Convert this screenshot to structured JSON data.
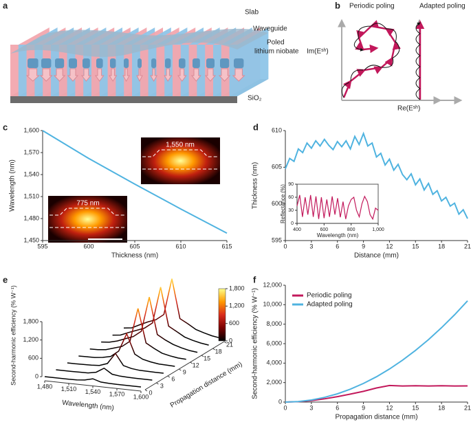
{
  "figure": {
    "labels": [
      "a",
      "b",
      "c",
      "d",
      "e",
      "f"
    ],
    "panel_a": {
      "slab": "Slab",
      "waveguide": "Waveguide",
      "poled": [
        "Poled",
        "lithium niobate"
      ],
      "substrate": "SiO₂"
    },
    "panel_b": {
      "left_title": "Periodic poling",
      "right_title": "Adapted poling",
      "y_axis": "Im(Eˢʰ)",
      "x_axis": "Re(Eˢʰ)"
    }
  },
  "chart_data": [
    {
      "type": "line",
      "x_label": "Thickness (nm)",
      "y_label": "Wavelength (nm)",
      "x": [
        595,
        600,
        605,
        610,
        615
      ],
      "values": [
        1600,
        1562,
        1527,
        1493,
        1460
      ],
      "color": "#4fb3e0",
      "xlim": [
        595,
        615
      ],
      "xticks": [
        595,
        600,
        605,
        610,
        615
      ],
      "ylim": [
        1450,
        1600
      ],
      "yticks": [
        {
          "value": 1450,
          "label": "1,450"
        },
        {
          "value": 1480,
          "label": "1,480"
        },
        {
          "value": 1510,
          "label": "1,510"
        },
        {
          "value": 1540,
          "label": "1,540"
        },
        {
          "value": 1570,
          "label": "1,570"
        },
        {
          "value": 1600,
          "label": "1,600"
        }
      ],
      "annotations": [
        "1,550 nm",
        "775 nm"
      ]
    },
    {
      "type": "line",
      "x_label": "Distance (mm)",
      "y_label": "Thickness (nm)",
      "x": [
        0,
        0.5,
        1,
        1.5,
        2,
        2.5,
        3,
        3.5,
        4,
        4.5,
        5,
        5.5,
        6,
        6.5,
        7,
        7.5,
        8,
        8.5,
        9,
        9.5,
        10,
        10.5,
        11,
        11.5,
        12,
        12.5,
        13,
        13.5,
        14,
        14.5,
        15,
        15.5,
        16,
        16.5,
        17,
        17.5,
        18,
        18.5,
        19,
        19.5,
        20,
        20.5,
        21
      ],
      "values": [
        604.8,
        606.2,
        605.8,
        607.5,
        607.0,
        608.3,
        607.6,
        608.6,
        607.9,
        608.8,
        608.0,
        607.4,
        608.5,
        607.8,
        608.6,
        607.5,
        609.2,
        608.1,
        609.6,
        607.9,
        608.3,
        606.4,
        606.9,
        605.3,
        606.1,
        604.6,
        605.4,
        604.0,
        603.3,
        604.1,
        602.6,
        603.4,
        601.9,
        602.8,
        601.3,
        601.8,
        600.4,
        600.9,
        599.7,
        600.1,
        598.6,
        599.2,
        598.0
      ],
      "color": "#4fb3e0",
      "xlim": [
        0,
        21
      ],
      "xticks": [
        0,
        3,
        6,
        9,
        12,
        15,
        18,
        21
      ],
      "ylim": [
        595,
        610
      ],
      "yticks": [
        595,
        600,
        605,
        610
      ]
    },
    {
      "type": "line",
      "x_label": "Wavelength (nm)",
      "y_label": "Reflectance (%)",
      "x": [
        400,
        420,
        440,
        460,
        480,
        500,
        520,
        540,
        560,
        580,
        600,
        620,
        640,
        660,
        680,
        700,
        720,
        740,
        760,
        780,
        800,
        820,
        840,
        860,
        880,
        900,
        920,
        940,
        960,
        980,
        1000
      ],
      "values": [
        40,
        65,
        15,
        60,
        20,
        65,
        15,
        62,
        10,
        60,
        12,
        55,
        15,
        62,
        20,
        58,
        14,
        50,
        10,
        40,
        55,
        60,
        30,
        15,
        45,
        62,
        50,
        20,
        10,
        35,
        30
      ],
      "color": "#c2185b",
      "xlim": [
        400,
        1000
      ],
      "xticks": [
        400,
        600,
        800,
        {
          "value": 1000,
          "label": "1,000"
        }
      ],
      "ylim": [
        0,
        90
      ],
      "yticks": [
        0,
        30,
        60,
        90
      ]
    },
    {
      "type": "waterfall",
      "x_label": "Wavelength (nm)",
      "y_label": "Second-harmonic efficiency (% W⁻¹)",
      "z_label": "Propagation distance (mm)",
      "x": [
        1480,
        1490,
        1500,
        1510,
        1520,
        1530,
        1540,
        1550,
        1560,
        1570,
        1580,
        1590,
        1600
      ],
      "z": [
        0,
        3,
        6,
        9,
        12,
        15,
        18,
        21
      ],
      "values": [
        [
          0,
          0,
          0,
          0,
          5,
          30,
          100,
          20,
          5,
          0,
          0,
          0,
          0
        ],
        [
          0,
          0,
          0,
          5,
          10,
          60,
          220,
          50,
          15,
          5,
          0,
          0,
          0
        ],
        [
          0,
          0,
          5,
          10,
          30,
          120,
          480,
          110,
          40,
          10,
          5,
          0,
          0
        ],
        [
          0,
          5,
          10,
          40,
          100,
          300,
          900,
          260,
          120,
          60,
          20,
          10,
          0
        ],
        [
          5,
          10,
          40,
          120,
          200,
          400,
          1500,
          400,
          250,
          120,
          60,
          20,
          5
        ],
        [
          10,
          30,
          100,
          200,
          300,
          500,
          1650,
          450,
          300,
          180,
          100,
          40,
          10
        ],
        [
          10,
          40,
          150,
          250,
          350,
          550,
          1750,
          500,
          350,
          200,
          120,
          60,
          20
        ],
        [
          15,
          50,
          180,
          300,
          400,
          600,
          1800,
          520,
          380,
          220,
          140,
          70,
          30
        ]
      ],
      "xlim": [
        1480,
        1600
      ],
      "xticks": [
        {
          "value": 1480,
          "label": "1,480"
        },
        {
          "value": 1510,
          "label": "1,510"
        },
        {
          "value": 1540,
          "label": "1,540"
        },
        {
          "value": 1570,
          "label": "1,570"
        },
        {
          "value": 1600,
          "label": "1,600"
        }
      ],
      "zlim": [
        0,
        21
      ],
      "zticks": [
        0,
        3,
        6,
        9,
        12,
        15,
        18,
        21
      ],
      "ylim": [
        0,
        1800
      ],
      "yticks": [
        0,
        600,
        {
          "value": 1200,
          "label": "1,200"
        },
        {
          "value": 1800,
          "label": "1,800"
        }
      ],
      "colormap": [
        "#000000",
        "#7a0000",
        "#d92b1c",
        "#ff9a00",
        "#ffff8a"
      ],
      "clim": [
        0,
        1800
      ],
      "cticks": [
        0,
        600,
        {
          "value": 1200,
          "label": "1,200"
        },
        {
          "value": 1800,
          "label": "1,800"
        }
      ]
    },
    {
      "type": "line",
      "x_label": "Propagation distance (mm)",
      "y_label": "Second-harmonic efficiency (% W⁻¹)",
      "x": [
        0,
        1.5,
        3,
        4.5,
        6,
        7.5,
        9,
        10.5,
        12,
        13.5,
        15,
        16.5,
        18,
        19.5,
        21
      ],
      "series": [
        {
          "name": "Periodic poling",
          "color": "#c2185b",
          "values": [
            0,
            40,
            150,
            330,
            560,
            820,
            1100,
            1450,
            1700,
            1650,
            1680,
            1650,
            1680,
            1650,
            1660
          ]
        },
        {
          "name": "Adapted poling",
          "color": "#4fb3e0",
          "values": [
            0,
            53,
            212,
            478,
            849,
            1327,
            1910,
            2600,
            3396,
            4298,
            5306,
            6420,
            7641,
            8967,
            10400
          ]
        }
      ],
      "xlim": [
        0,
        21
      ],
      "xticks": [
        0,
        3,
        6,
        9,
        12,
        15,
        18,
        21
      ],
      "ylim": [
        0,
        12000
      ],
      "yticks": [
        0,
        {
          "value": 2000,
          "label": "2,000"
        },
        {
          "value": 4000,
          "label": "4,000"
        },
        {
          "value": 6000,
          "label": "6,000"
        },
        {
          "value": 8000,
          "label": "8,000"
        },
        {
          "value": 10000,
          "label": "10,000"
        },
        {
          "value": 12000,
          "label": "12,000"
        }
      ],
      "legend": "upper-left"
    }
  ]
}
